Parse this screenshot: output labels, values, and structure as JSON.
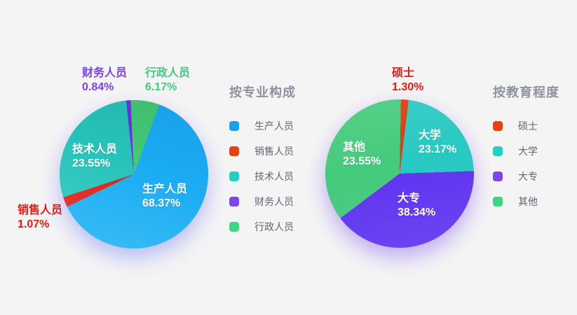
{
  "page": {
    "background": "#f5f4f5"
  },
  "chart_data": [
    {
      "type": "pie",
      "title": "按专业构成",
      "legend_position": "right",
      "slices": [
        {
          "label": "生产人员",
          "value": 68.37,
          "pct_label": "68.37%",
          "color": "#18a0f3",
          "label_placement": "inside",
          "label_color": "#ffffff"
        },
        {
          "label": "销售人员",
          "value": 1.07,
          "pct_label": "1.07%",
          "color": "#e5430e",
          "label_placement": "outside",
          "label_color": "#e8190e"
        },
        {
          "label": "技术人员",
          "value": 23.55,
          "pct_label": "23.55%",
          "color": "#21cfc5",
          "label_placement": "inside",
          "label_color": "#ffffff"
        },
        {
          "label": "财务人员",
          "value": 0.84,
          "pct_label": "0.84%",
          "color": "#7c44ea",
          "label_placement": "outside",
          "label_color": "#7b3ff2"
        },
        {
          "label": "行政人员",
          "value": 6.17,
          "pct_label": "6.17%",
          "color": "#3ed584",
          "label_placement": "outside",
          "label_color": "#3ecc80"
        }
      ],
      "render": {
        "from": -6,
        "segments": [
          {
            "slice": "财务人员",
            "color": "#7031e8",
            "sweep": 3.5
          },
          {
            "slice": "行政人员",
            "color": "#43c973",
            "sweep": 22.5
          },
          {
            "slice": "生产人员",
            "color": "#1aabf3",
            "sweep": 224
          },
          {
            "slice": "销售人员",
            "color": "#e8190e",
            "sweep": 8
          },
          {
            "slice": "技术人员",
            "color": "#26c2b9",
            "sweep": 102
          }
        ]
      }
    },
    {
      "type": "pie",
      "title": "按教育程度",
      "legend_position": "right",
      "slices": [
        {
          "label": "硕士",
          "value": 1.3,
          "pct_label": "1.30%",
          "color": "#e5430e",
          "label_placement": "outside",
          "label_color": "#e8190e"
        },
        {
          "label": "大学",
          "value": 23.17,
          "pct_label": "23.17%",
          "color": "#21cfc5",
          "label_placement": "inside",
          "label_color": "#ffffff"
        },
        {
          "label": "大专",
          "value": 38.34,
          "pct_label": "38.34%",
          "color": "#7c44ea",
          "label_placement": "inside",
          "label_color": "#ffffff"
        },
        {
          "label": "其他",
          "value": 23.55,
          "pct_label": "23.55%",
          "color": "#3ed584",
          "label_placement": "inside",
          "label_color": "#ffffff"
        }
      ],
      "render": {
        "from": 1,
        "segments": [
          {
            "slice": "硕士",
            "color": "#dd380d",
            "sweep": 6
          },
          {
            "slice": "大学",
            "color": "#27c9c2",
            "sweep": 81
          },
          {
            "slice": "大专",
            "color": "#5f33f0",
            "sweep": 145
          },
          {
            "slice": "其他",
            "color": "#44cb7c",
            "sweep": 128
          }
        ]
      }
    }
  ]
}
